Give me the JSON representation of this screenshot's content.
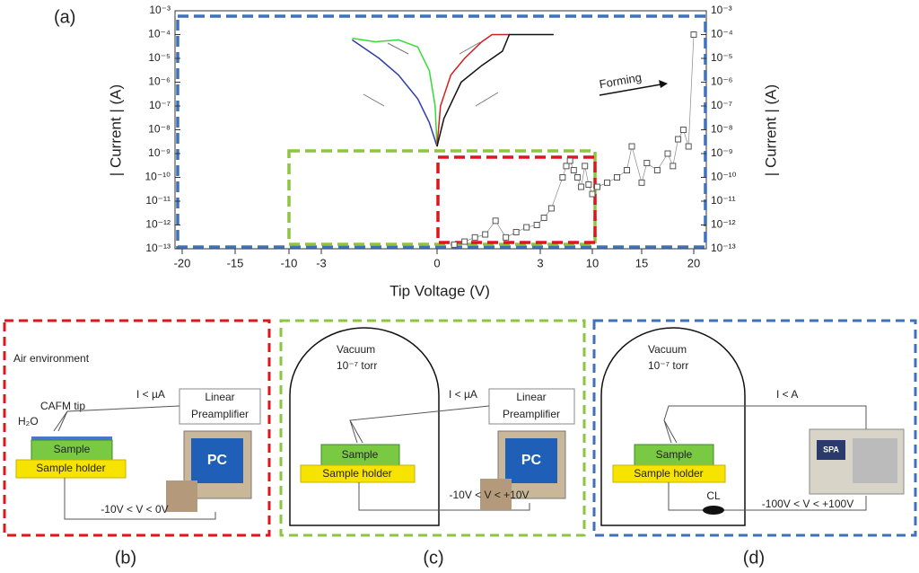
{
  "chart_data": {
    "type": "scatter",
    "panel_label": "(a)",
    "xlabel": "Tip Voltage (V)",
    "ylabel": "| Current | (A)",
    "y2label": "| Current | (A)",
    "annotation": "Forming",
    "log_y": true,
    "xticks": [
      -20,
      -15,
      -10,
      -3,
      0,
      3,
      10,
      15,
      20
    ],
    "ylim": [
      1e-13,
      0.001
    ],
    "yticks": [
      {
        "value": 1e-13,
        "label": "10⁻¹³"
      },
      {
        "value": 1e-12,
        "label": "10⁻¹²"
      },
      {
        "value": 1e-11,
        "label": "10⁻¹¹"
      },
      {
        "value": 1e-10,
        "label": "10⁻¹⁰"
      },
      {
        "value": 1e-09,
        "label": "10⁻⁹"
      },
      {
        "value": 1e-08,
        "label": "10⁻⁸"
      },
      {
        "value": 1e-07,
        "label": "10⁻⁷"
      },
      {
        "value": 1e-06,
        "label": "10⁻⁶"
      },
      {
        "value": 1e-05,
        "label": "10⁻⁵"
      },
      {
        "value": 0.0001,
        "label": "10⁻⁴"
      },
      {
        "value": 0.001,
        "label": "10⁻³"
      }
    ],
    "series": [
      {
        "color": "#2e3cb0",
        "mode": "line",
        "x": [
          -2.2,
          -1.5,
          -1,
          -0.5,
          -0.2,
          0
        ],
        "values": [
          6e-05,
          1e-05,
          2e-06,
          2e-07,
          2e-08,
          2e-09
        ]
      },
      {
        "color": "#33dd33",
        "mode": "line",
        "x": [
          -2.2,
          -1.6,
          -1.0,
          -0.5,
          -0.2,
          -0.05,
          0
        ],
        "values": [
          7e-05,
          5e-05,
          6e-05,
          3e-05,
          3e-06,
          1e-07,
          2e-09
        ]
      },
      {
        "color": "#d02020",
        "mode": "line",
        "x": [
          0,
          0.1,
          0.4,
          0.8,
          1.3,
          1.6,
          2.1
        ],
        "values": [
          2e-09,
          1e-07,
          2e-06,
          1e-05,
          5e-05,
          0.0001,
          0.0001
        ]
      },
      {
        "color": "#111111",
        "mode": "line",
        "x": [
          0,
          0.2,
          0.7,
          1.3,
          1.9,
          2.1,
          4.8
        ],
        "values": [
          2e-09,
          3e-08,
          1e-06,
          5e-06,
          2e-05,
          0.0001,
          0.0001
        ]
      },
      {
        "color": "#555555",
        "mode": "scatter",
        "x": [
          0.5,
          0.8,
          1.1,
          1.4,
          1.7,
          2.0,
          2.3,
          2.6,
          2.9,
          3.5,
          4.5,
          6.0,
          6.5,
          7.0,
          7.5,
          8.0,
          8.5,
          9.0,
          9.5,
          10.0,
          10.5,
          11.5,
          12.5,
          13.5,
          14.0,
          15.0,
          15.5,
          16.5,
          17.5,
          18.0,
          18.5,
          19.0,
          19.5,
          20.0
        ],
        "values": [
          1.5e-13,
          2e-13,
          3e-13,
          4e-13,
          1.5e-12,
          3e-13,
          5e-13,
          8e-13,
          1e-12,
          2e-12,
          5e-12,
          1e-10,
          3e-10,
          5e-10,
          2e-10,
          1e-10,
          4e-11,
          3e-10,
          5e-11,
          2e-11,
          4e-11,
          6e-11,
          1e-10,
          2e-10,
          2e-09,
          6e-11,
          4e-10,
          2e-10,
          1e-09,
          3e-10,
          4e-09,
          1e-08,
          2e-09,
          0.0001
        ]
      }
    ]
  },
  "panels": [
    {
      "label": "(b)",
      "env": "Air environment",
      "tip": "CAFM tip",
      "water": "H₂O",
      "current": "I < µA",
      "amp": [
        "Linear",
        "Preamplifier"
      ],
      "sample": "Sample",
      "holder": "Sample holder",
      "pc": "PC",
      "bias": "-10V < V < 0V"
    },
    {
      "label": "(c)",
      "env": [
        "Vacuum",
        "10⁻⁷ torr"
      ],
      "current": "I < µA",
      "amp": [
        "Linear",
        "Preamplifier"
      ],
      "sample": "Sample",
      "holder": "Sample holder",
      "pc": "PC",
      "bias": "-10V < V < +10V"
    },
    {
      "label": "(d)",
      "env": [
        "Vacuum",
        "10⁻⁷ torr"
      ],
      "current": "I < A",
      "sample": "Sample",
      "holder": "Sample holder",
      "device": "SPA",
      "cl": "CL",
      "bias": "-100V < V < +100V"
    }
  ]
}
